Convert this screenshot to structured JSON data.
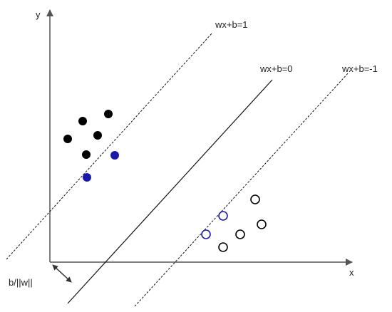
{
  "axes": {
    "x_label": "x",
    "y_label": "y"
  },
  "lines": {
    "positive_margin": "wx+b=1",
    "decision_boundary": "wx+b=0",
    "negative_margin": "wx+b=-1"
  },
  "offset_label": "b/||w||",
  "colors": {
    "axis": "#555555",
    "line": "#111111",
    "positive_point": "#000000",
    "support_vector": "#1a1aa8",
    "background": "#ffffff"
  },
  "classes": {
    "positive_filled_points": 5,
    "positive_support_vectors": 2,
    "negative_hollow_points": 4,
    "negative_support_vectors": 2
  }
}
